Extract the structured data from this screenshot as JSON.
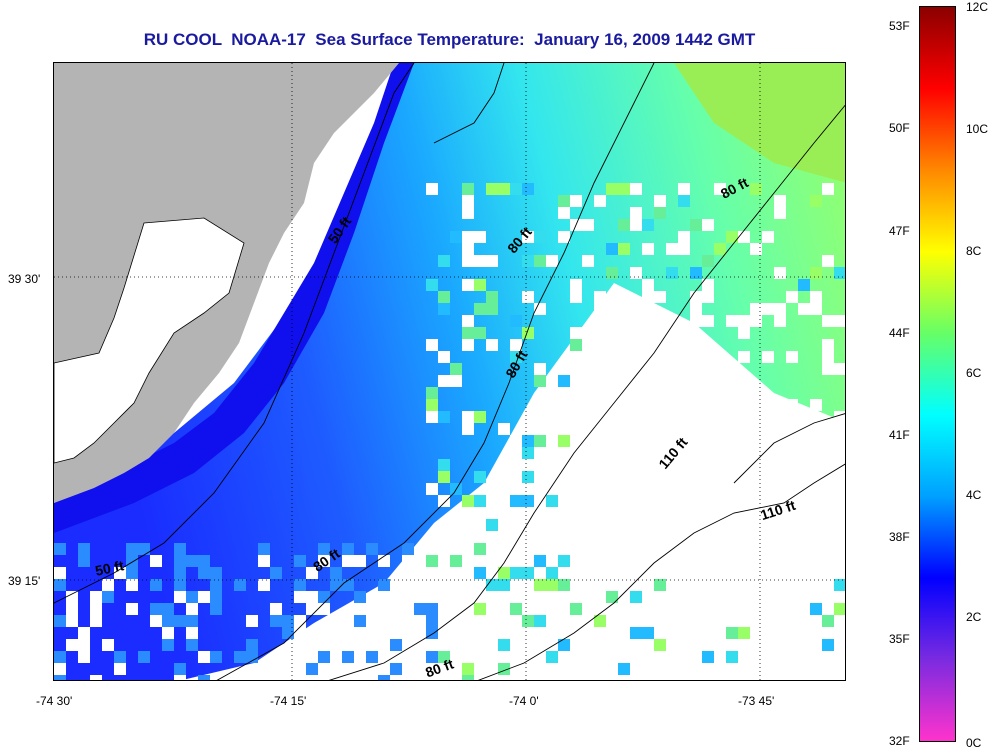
{
  "title": "RU COOL  NOAA-17  Sea Surface Temperature:  January 16, 2009 1442 GMT",
  "axes": {
    "latitude_labels": [
      "39 30'",
      "39 15'"
    ],
    "longitude_labels": [
      "-74 30'",
      "-74 15'",
      "-74 0'",
      "-73 45'"
    ]
  },
  "colorbar": {
    "fahrenheit_labels": [
      "53F",
      "50F",
      "47F",
      "44F",
      "41F",
      "38F",
      "35F",
      "32F"
    ],
    "celsius_labels": [
      "12C",
      "10C",
      "8C",
      "6C",
      "4C",
      "2C",
      "0C"
    ],
    "colors": [
      "#ff33cc",
      "#7a2be0",
      "#0000ff",
      "#00a0ff",
      "#00ffff",
      "#66ff66",
      "#ffff00",
      "#ff8800",
      "#ff0000",
      "#8b0000"
    ]
  },
  "depth_contours": [
    "50 ft",
    "50 ft",
    "80 ft",
    "80 ft",
    "80 ft",
    "80 ft",
    "80 ft",
    "110 ft",
    "110 ft"
  ],
  "land_color": "#b4b4b4"
}
